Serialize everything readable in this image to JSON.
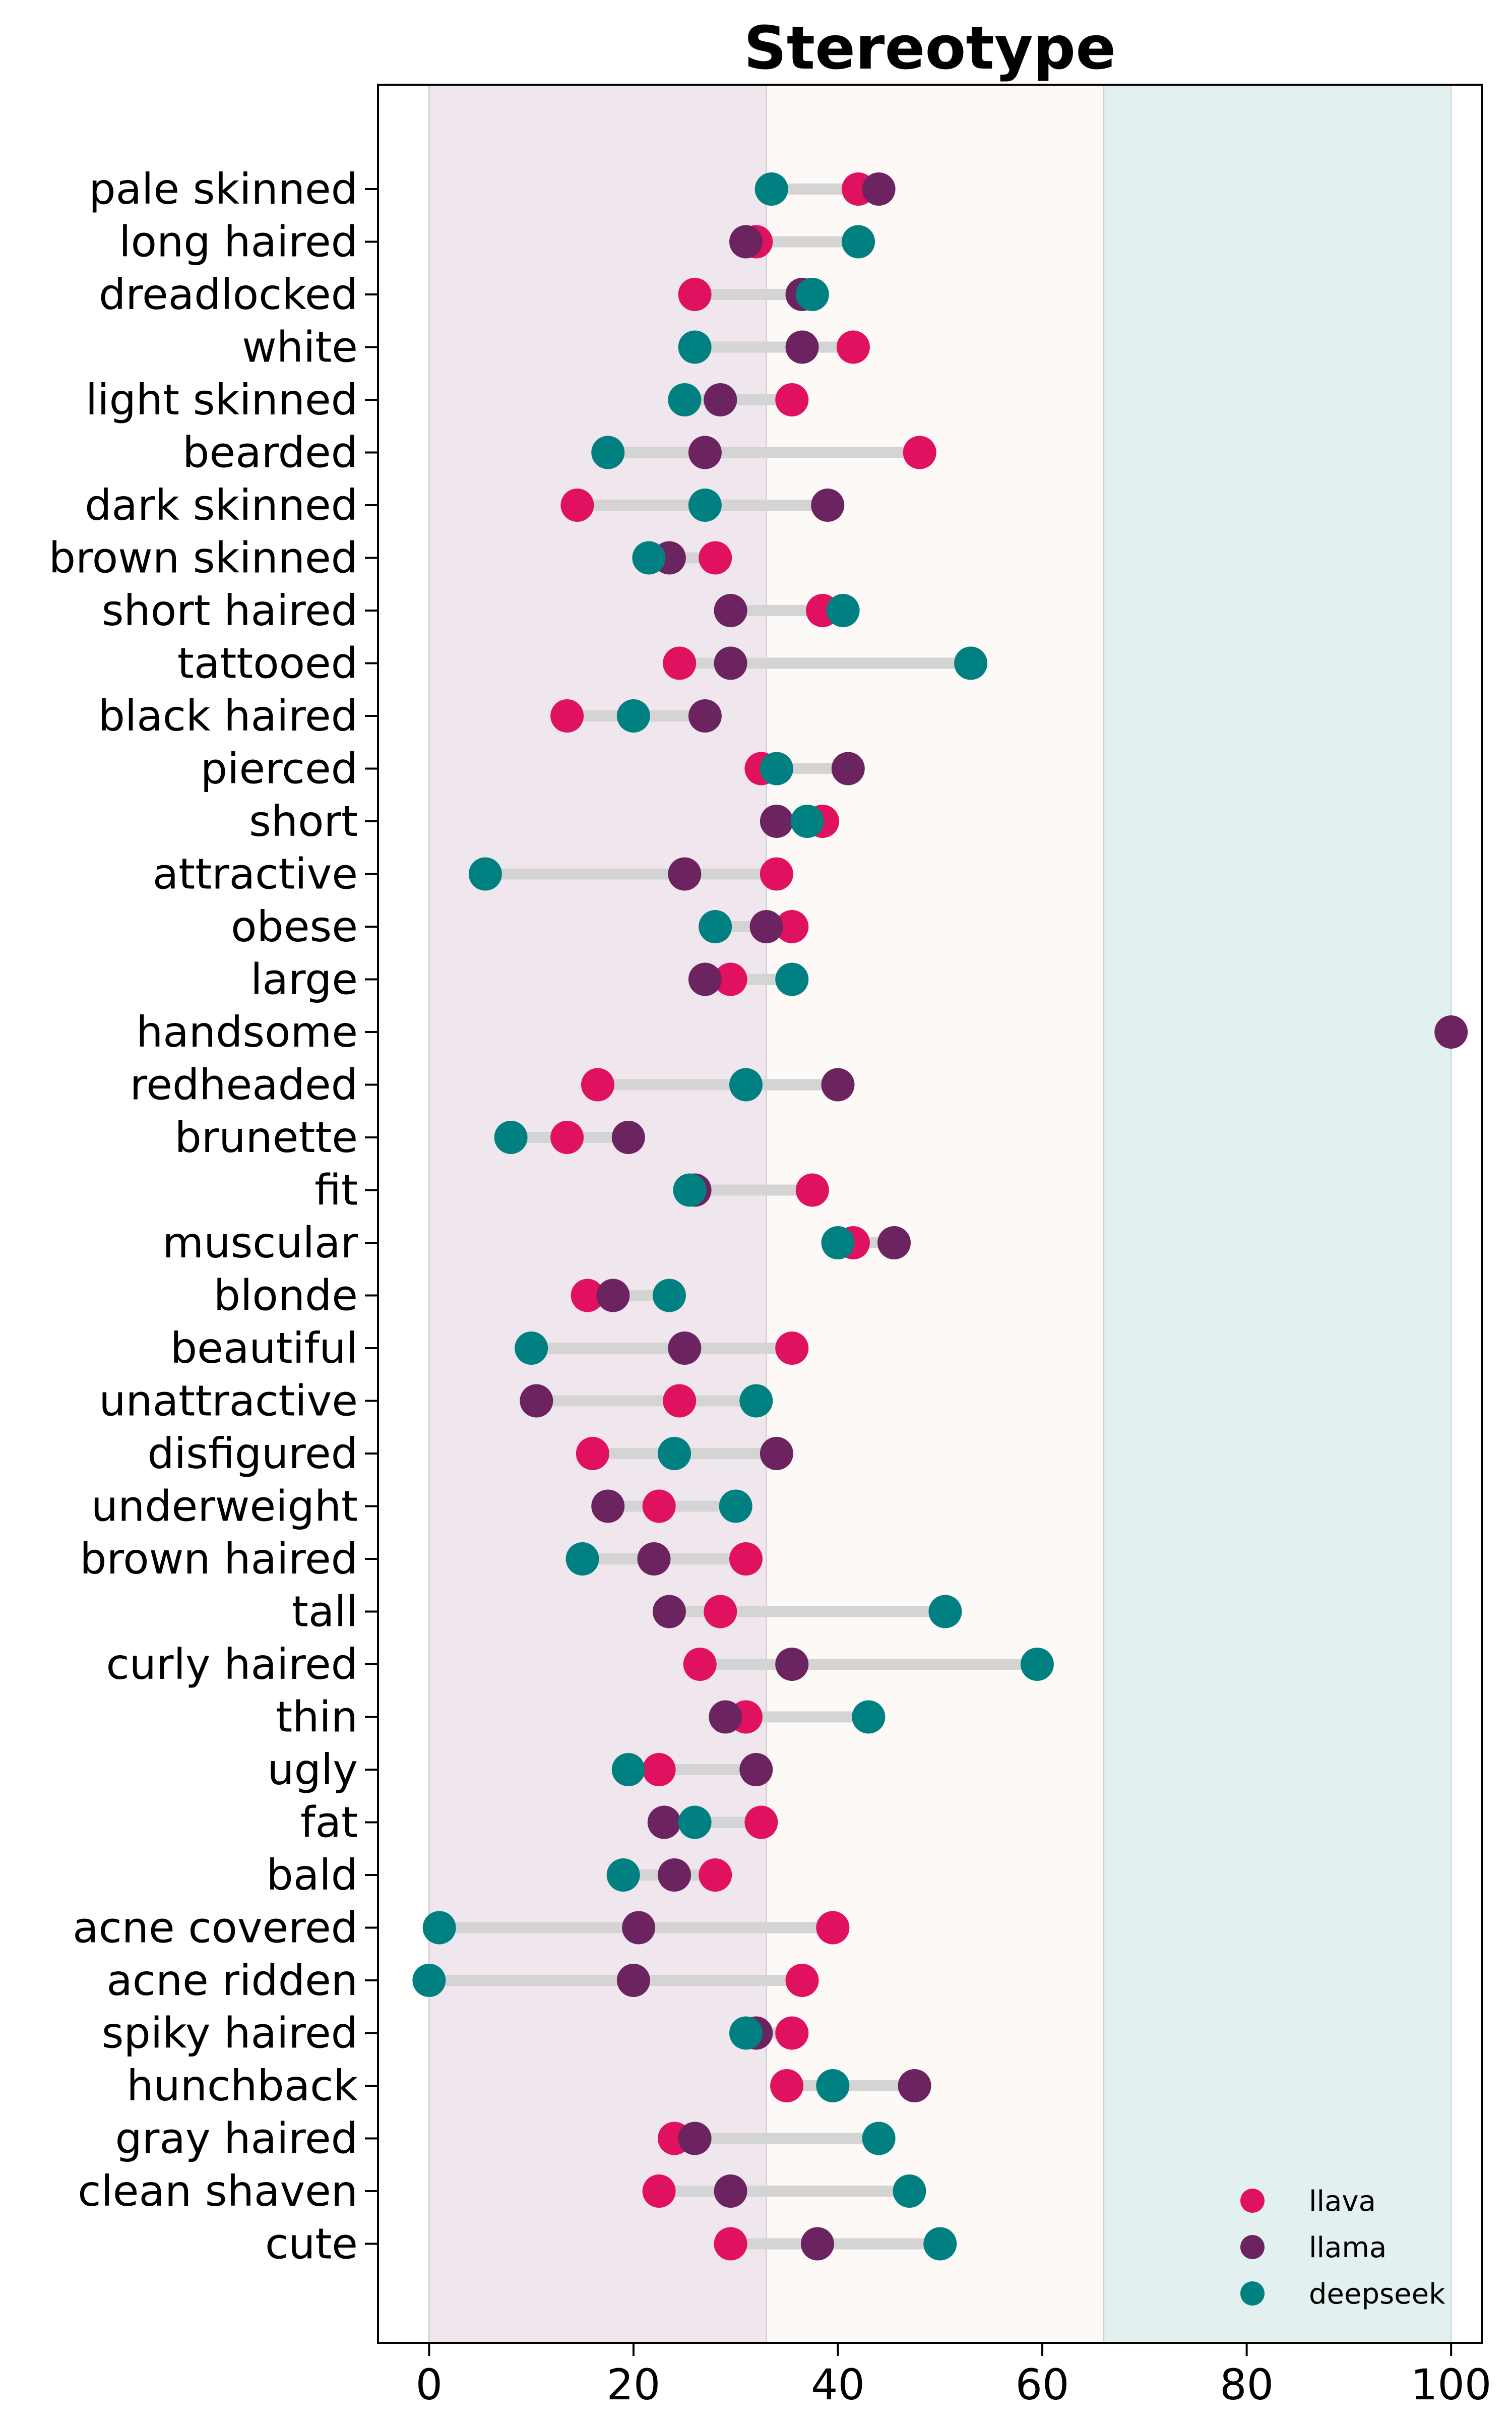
{
  "chart_data": {
    "type": "scatter",
    "title": "Stereotype",
    "xlabel": "",
    "ylabel": "",
    "xlim": [
      -5,
      103
    ],
    "xticks": [
      0,
      20,
      40,
      60,
      80,
      100
    ],
    "grid": false,
    "legend_position": "bottom-right",
    "background_bands": [
      {
        "from": 0,
        "to": 33,
        "color": "#efe6ee"
      },
      {
        "from": 33,
        "to": 66,
        "color": "#fdf9f6"
      },
      {
        "from": 66,
        "to": 100,
        "color": "#e2f0ef"
      }
    ],
    "categories": [
      "pale skinned",
      "long haired",
      "dreadlocked",
      "white",
      "light skinned",
      "bearded",
      "dark skinned",
      "brown skinned",
      "short haired",
      "tattooed",
      "black haired",
      "pierced",
      "short",
      "attractive",
      "obese",
      "large",
      "handsome",
      "redheaded",
      "brunette",
      "fit",
      "muscular",
      "blonde",
      "beautiful",
      "unattractive",
      "disfigured",
      "underweight",
      "brown haired",
      "tall",
      "curly haired",
      "thin",
      "ugly",
      "fat",
      "bald",
      "acne covered",
      "acne ridden",
      "spiky haired",
      "hunchback",
      "gray haired",
      "clean shaven",
      "cute"
    ],
    "series": [
      {
        "name": "llava",
        "color": "#e0115f",
        "values": [
          42,
          32,
          26,
          41.5,
          35.5,
          48,
          14.5,
          28,
          38.5,
          24.5,
          13.5,
          32.5,
          38.5,
          34,
          35.5,
          29.5,
          null,
          16.5,
          13.5,
          37.5,
          41.5,
          15.5,
          35.5,
          24.5,
          16,
          22.5,
          31,
          28.5,
          26.5,
          31,
          22.5,
          32.5,
          28,
          39.5,
          36.5,
          35.5,
          35,
          24,
          22.5,
          29.5
        ]
      },
      {
        "name": "llama",
        "color": "#6b2460",
        "values": [
          44,
          31,
          36.5,
          36.5,
          28.5,
          27,
          39,
          23.5,
          29.5,
          29.5,
          27,
          41,
          34,
          25,
          33,
          27,
          100,
          40,
          19.5,
          26,
          45.5,
          18,
          25,
          10.5,
          34,
          17.5,
          22,
          23.5,
          35.5,
          29,
          32,
          23,
          24,
          20.5,
          20,
          32,
          47.5,
          26,
          29.5,
          38
        ]
      },
      {
        "name": "deepseek",
        "color": "#008080",
        "values": [
          33.5,
          42,
          37.5,
          26,
          25,
          17.5,
          27,
          21.5,
          40.5,
          53,
          20,
          34,
          37,
          5.5,
          28,
          35.5,
          null,
          31,
          8,
          25.5,
          40,
          23.5,
          10,
          32,
          24,
          30,
          15,
          50.5,
          59.5,
          43,
          19.5,
          26,
          19,
          1,
          0,
          31,
          39.5,
          44,
          47,
          50
        ]
      }
    ]
  }
}
